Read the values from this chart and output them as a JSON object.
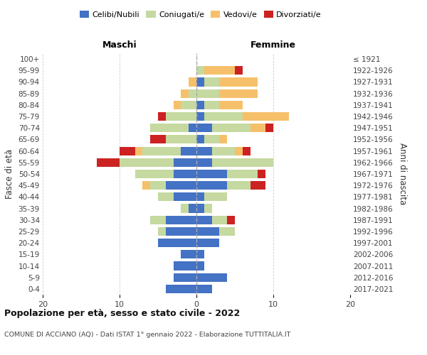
{
  "age_groups": [
    "0-4",
    "5-9",
    "10-14",
    "15-19",
    "20-24",
    "25-29",
    "30-34",
    "35-39",
    "40-44",
    "45-49",
    "50-54",
    "55-59",
    "60-64",
    "65-69",
    "70-74",
    "75-79",
    "80-84",
    "85-89",
    "90-94",
    "95-99",
    "100+"
  ],
  "birth_years": [
    "2017-2021",
    "2012-2016",
    "2007-2011",
    "2002-2006",
    "1997-2001",
    "1992-1996",
    "1987-1991",
    "1982-1986",
    "1977-1981",
    "1972-1976",
    "1967-1971",
    "1962-1966",
    "1957-1961",
    "1952-1956",
    "1947-1951",
    "1942-1946",
    "1937-1941",
    "1932-1936",
    "1927-1931",
    "1922-1926",
    "≤ 1921"
  ],
  "maschi": {
    "celibi": [
      4,
      3,
      3,
      2,
      5,
      4,
      4,
      1,
      3,
      4,
      3,
      3,
      2,
      0,
      1,
      0,
      0,
      0,
      0,
      0,
      0
    ],
    "coniugati": [
      0,
      0,
      0,
      0,
      0,
      1,
      2,
      1,
      2,
      2,
      5,
      7,
      5,
      4,
      5,
      4,
      2,
      1,
      0,
      0,
      0
    ],
    "vedovi": [
      0,
      0,
      0,
      0,
      0,
      0,
      0,
      0,
      0,
      1,
      0,
      0,
      1,
      0,
      0,
      0,
      1,
      1,
      1,
      0,
      0
    ],
    "divorziati": [
      0,
      0,
      0,
      0,
      0,
      0,
      0,
      0,
      0,
      0,
      0,
      3,
      2,
      2,
      0,
      1,
      0,
      0,
      0,
      0,
      0
    ]
  },
  "femmine": {
    "nubili": [
      2,
      4,
      1,
      1,
      3,
      3,
      2,
      1,
      1,
      4,
      4,
      2,
      2,
      1,
      2,
      1,
      1,
      0,
      1,
      0,
      0
    ],
    "coniugate": [
      0,
      0,
      0,
      0,
      0,
      2,
      2,
      1,
      3,
      3,
      4,
      8,
      3,
      2,
      5,
      5,
      2,
      3,
      2,
      1,
      0
    ],
    "vedove": [
      0,
      0,
      0,
      0,
      0,
      0,
      0,
      0,
      0,
      0,
      0,
      0,
      1,
      1,
      2,
      6,
      3,
      5,
      5,
      4,
      0
    ],
    "divorziate": [
      0,
      0,
      0,
      0,
      0,
      0,
      1,
      0,
      0,
      2,
      1,
      0,
      1,
      0,
      1,
      0,
      0,
      0,
      0,
      1,
      0
    ]
  },
  "colors": {
    "celibi": "#4472c4",
    "coniugati": "#c5d9a0",
    "vedovi": "#f6c06a",
    "divorziati": "#cc2222"
  },
  "xlim": 20,
  "title": "Popolazione per età, sesso e stato civile - 2022",
  "subtitle": "COMUNE DI ACCIANO (AQ) - Dati ISTAT 1° gennaio 2022 - Elaborazione TUTTITALIA.IT",
  "ylabel_left": "Fasce di età",
  "ylabel_right": "Anni di nascita",
  "xlabel_maschi": "Maschi",
  "xlabel_femmine": "Femmine"
}
